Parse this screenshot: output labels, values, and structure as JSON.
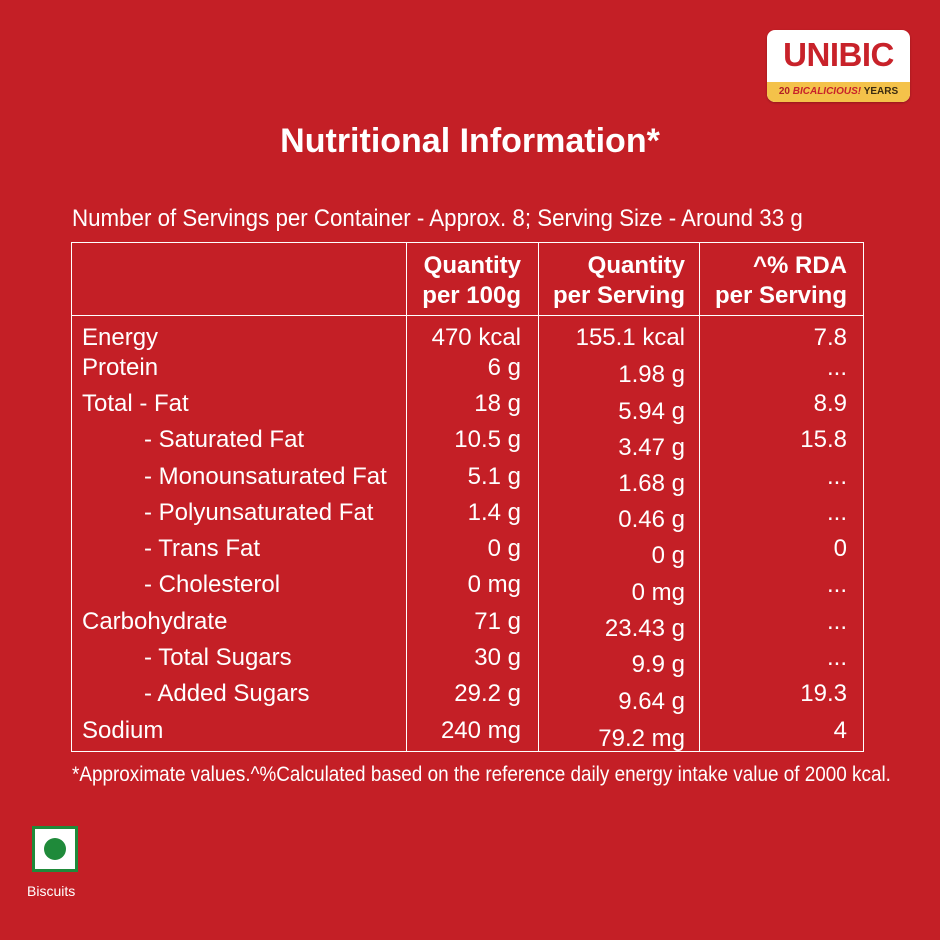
{
  "brand": {
    "name": "UNIBIC",
    "tagline_num": "20",
    "tagline_mid": "BICALICIOUS!",
    "tagline_end": "YEARS"
  },
  "title": "Nutritional Information*",
  "serving_line": "Number of Servings per Container - Approx. 8; Serving Size - Around 33 g",
  "headers": {
    "per100_l1": "Quantity",
    "per100_l2": "per 100g",
    "serving_l1": "Quantity",
    "serving_l2": "per Serving",
    "rda_l1": "^% RDA",
    "rda_l2": "per Serving"
  },
  "rows": [
    {
      "label": "Energy",
      "per100": "470 kcal",
      "serving": "155.1 kcal",
      "rda": "7.8"
    },
    {
      "label": "Protein",
      "per100": "6 g",
      "serving": "1.98 g",
      "rda": "..."
    },
    {
      "label": "Total -  Fat",
      "per100": "18 g",
      "serving": "5.94 g",
      "rda": "8.9"
    },
    {
      "label": "- Saturated Fat",
      "per100": "10.5 g",
      "serving": "3.47 g",
      "rda": "15.8"
    },
    {
      "label": "- Monounsaturated Fat",
      "per100": "5.1 g",
      "serving": "1.68 g",
      "rda": "..."
    },
    {
      "label": "- Polyunsaturated Fat",
      "per100": "1.4 g",
      "serving": "0.46 g",
      "rda": "..."
    },
    {
      "label": "- Trans Fat",
      "per100": "0 g",
      "serving": "0 g",
      "rda": "0"
    },
    {
      "label": "- Cholesterol",
      "per100": "0 mg",
      "serving": "0 mg",
      "rda": "..."
    },
    {
      "label": "Carbohydrate",
      "per100": "71 g",
      "serving": "23.43 g",
      "rda": "..."
    },
    {
      "label": "- Total Sugars",
      "per100": "30 g",
      "serving": "9.9 g",
      "rda": "..."
    },
    {
      "label": "- Added Sugars",
      "per100": "29.2 g",
      "serving": "9.64 g",
      "rda": "19.3"
    },
    {
      "label": "Sodium",
      "per100": "240 mg",
      "serving": "79.2 mg",
      "rda": "4"
    }
  ],
  "footnote": "*Approximate values.^%Calculated based on the reference daily energy intake value of 2000 kcal.",
  "veg_label": "Biscuits",
  "colors": {
    "background": "#c41f26",
    "text": "#ffffff",
    "veg_green": "#1f8a3a",
    "logo_band": "#f4c24a"
  }
}
